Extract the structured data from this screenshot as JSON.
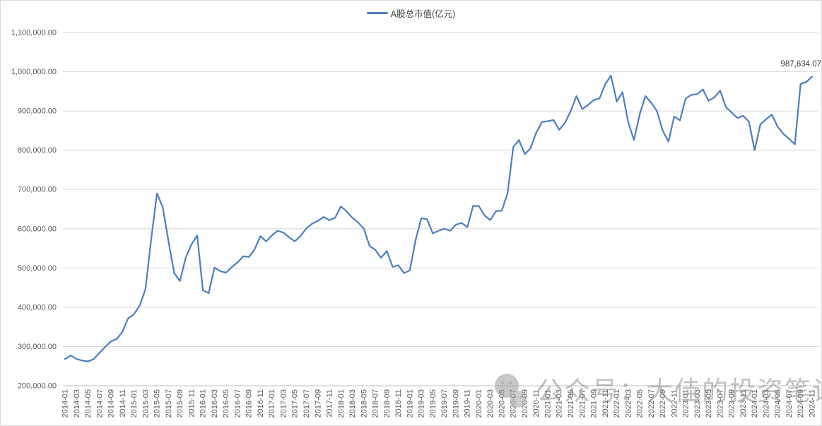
{
  "legend": {
    "label": "A股总市值(亿元)"
  },
  "watermark": {
    "text": "公众号：大佳的投资笔记",
    "icon": "wechat-icon"
  },
  "colors": {
    "line": "#4F81BD",
    "grid": "#D9D9D9",
    "axis": "#BFBFBF",
    "tick_text": "#595959",
    "data_label": "#404040",
    "watermark_gray": "#8c8c8c"
  },
  "chart_data": {
    "type": "line",
    "title": "",
    "xlabel": "",
    "ylabel": "",
    "legend_position": "top",
    "grid": true,
    "ylim": [
      200000,
      1100000
    ],
    "y_tick_interval": 100000,
    "y_ticks": [
      "200,000.00",
      "300,000.00",
      "400,000.00",
      "500,000.00",
      "600,000.00",
      "700,000.00",
      "800,000.00",
      "900,000.00",
      "1,000,000.00",
      "1,100,000.00"
    ],
    "x_tick_step": 2,
    "end_label": "987,634.07",
    "x": [
      "2014-01",
      "2014-02",
      "2014-03",
      "2014-04",
      "2014-05",
      "2014-06",
      "2014-07",
      "2014-08",
      "2014-09",
      "2014-10",
      "2014-11",
      "2014-12",
      "2015-01",
      "2015-02",
      "2015-03",
      "2015-04",
      "2015-05",
      "2015-06",
      "2015-07",
      "2015-08",
      "2015-09",
      "2015-10",
      "2015-11",
      "2015-12",
      "2016-01",
      "2016-02",
      "2016-03",
      "2016-04",
      "2016-05",
      "2016-06",
      "2016-07",
      "2016-08",
      "2016-09",
      "2016-10",
      "2016-11",
      "2016-12",
      "2017-01",
      "2017-02",
      "2017-03",
      "2017-04",
      "2017-05",
      "2017-06",
      "2017-07",
      "2017-08",
      "2017-09",
      "2017-10",
      "2017-11",
      "2017-12",
      "2018-01",
      "2018-02",
      "2018-03",
      "2018-04",
      "2018-05",
      "2018-06",
      "2018-07",
      "2018-08",
      "2018-09",
      "2018-10",
      "2018-11",
      "2018-12",
      "2019-01",
      "2019-02",
      "2019-03",
      "2019-04",
      "2019-05",
      "2019-06",
      "2019-07",
      "2019-08",
      "2019-09",
      "2019-10",
      "2019-11",
      "2019-12",
      "2020-01",
      "2020-02",
      "2020-03",
      "2020-04",
      "2020-05",
      "2020-06",
      "2020-07",
      "2020-08",
      "2020-09",
      "2020-10",
      "2020-11",
      "2020-12",
      "2021-01",
      "2021-02",
      "2021-03",
      "2021-04",
      "2021-05",
      "2021-06",
      "2021-07",
      "2021-08",
      "2021-09",
      "2021-10",
      "2021-11",
      "2021-12",
      "2022-01",
      "2022-02",
      "2022-03",
      "2022-04",
      "2022-05",
      "2022-06",
      "2022-07",
      "2022-08",
      "2022-09",
      "2022-10",
      "2022-11",
      "2022-12",
      "2023-01",
      "2023-02",
      "2023-03",
      "2023-04",
      "2023-05",
      "2023-06",
      "2023-07",
      "2023-08",
      "2023-09",
      "2023-10",
      "2023-11",
      "2023-12",
      "2024-01",
      "2024-02",
      "2024-03",
      "2024-04",
      "2024-05",
      "2024-06",
      "2024-07",
      "2024-08",
      "2024-09",
      "2024-10",
      "2024-11"
    ],
    "series": [
      {
        "name": "A股总市值(亿元)",
        "values": [
          268000,
          277000,
          268000,
          264000,
          262000,
          268000,
          284000,
          299000,
          313000,
          319000,
          338000,
          372000,
          382000,
          405000,
          446000,
          575000,
          690000,
          655000,
          568000,
          487000,
          467000,
          526000,
          560000,
          583000,
          443000,
          436000,
          501000,
          492000,
          488000,
          502000,
          514000,
          530000,
          528000,
          548000,
          581000,
          568000,
          583000,
          595000,
          590000,
          578000,
          568000,
          582000,
          601000,
          613000,
          620000,
          630000,
          622000,
          628000,
          657000,
          644000,
          628000,
          616000,
          600000,
          556000,
          546000,
          526000,
          543000,
          503000,
          507000,
          487000,
          494000,
          571000,
          627000,
          624000,
          588000,
          595000,
          600000,
          595000,
          610000,
          615000,
          604000,
          658000,
          658000,
          634000,
          622000,
          645000,
          646000,
          690000,
          808000,
          826000,
          790000,
          805000,
          845000,
          872000,
          874000,
          877000,
          852000,
          870000,
          900000,
          938000,
          905000,
          915000,
          928000,
          932000,
          968000,
          990000,
          924000,
          948000,
          872000,
          826000,
          892000,
          938000,
          921000,
          900000,
          850000,
          822000,
          886000,
          876000,
          932000,
          941000,
          943000,
          955000,
          926000,
          935000,
          952000,
          910000,
          896000,
          882000,
          888000,
          873000,
          800000,
          866000,
          879000,
          891000,
          860000,
          842000,
          829000,
          815000,
          969000,
          974000,
          987634.07
        ]
      }
    ]
  }
}
